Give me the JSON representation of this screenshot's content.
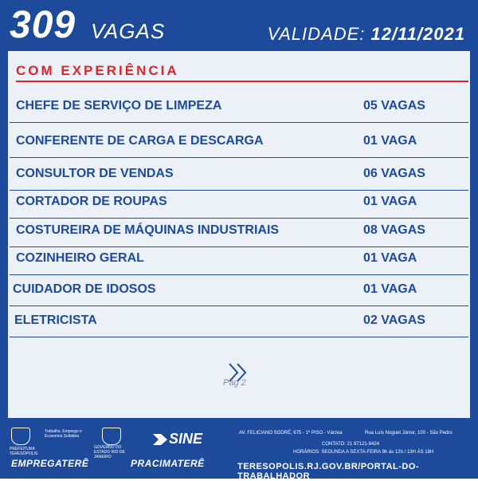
{
  "header": {
    "count": "309",
    "vagas_label": "VAGAS",
    "validity_label": "VALIDADE:",
    "validity_date": "12/11/2021"
  },
  "section": {
    "title": "COM EXPERIÊNCIA"
  },
  "jobs": [
    {
      "title": "CHEFE DE SERVIÇO DE LIMPEZA",
      "count": "05 VAGAS"
    },
    {
      "title": "CONFERENTE DE CARGA E DESCARGA",
      "count": "01 VAGA"
    },
    {
      "title": "CONSULTOR DE VENDAS",
      "count": "06 VAGAS"
    },
    {
      "title": "CORTADOR DE ROUPAS",
      "count": "01 VAGA"
    },
    {
      "title": "COSTUREIRA DE MÁQUINAS INDUSTRIAIS",
      "count": "08 VAGAS"
    },
    {
      "title": "COZINHEIRO GERAL",
      "count": "01 VAGA"
    },
    {
      "title": "CUIDADOR DE IDOSOS",
      "count": "01 VAGA"
    },
    {
      "title": "ELETRICISTA",
      "count": "02 VAGAS"
    }
  ],
  "pagination": {
    "page_label": "Pág 2",
    "next_icon": "double-chevron-right-icon"
  },
  "footer": {
    "prefeitura": "PREFEITURA TERESÓPOLIS",
    "secretaria": "Trabalho, Emprego e Economia Solidária",
    "governo": "GOVERNO DO ESTADO RIO DE JANEIRO",
    "sine": "SINE",
    "empregatere": "EMPREGATERÊ",
    "pracimatere": "PRACIMATERÊ",
    "address1": "AV. FELICIANO SODRÉ, 675 - 1º PISO - Várzea",
    "address2": "Rua Luís Noguet Júnior, 100 - São Pedro",
    "contato": "CONTATO: 21 97121-8424",
    "horarios": "HORÁRIOS: SEGUNDA A SEXTA-FEIRA 9h às 12h / 13H ÀS 18H",
    "url": "TERESOPOLIS.RJ.GOV.BR/PORTAL-DO-TRABALHADOR"
  },
  "colors": {
    "primary_blue": "#1d4a9a",
    "accent_red": "#d9262b",
    "panel": "#ecf1f8"
  }
}
